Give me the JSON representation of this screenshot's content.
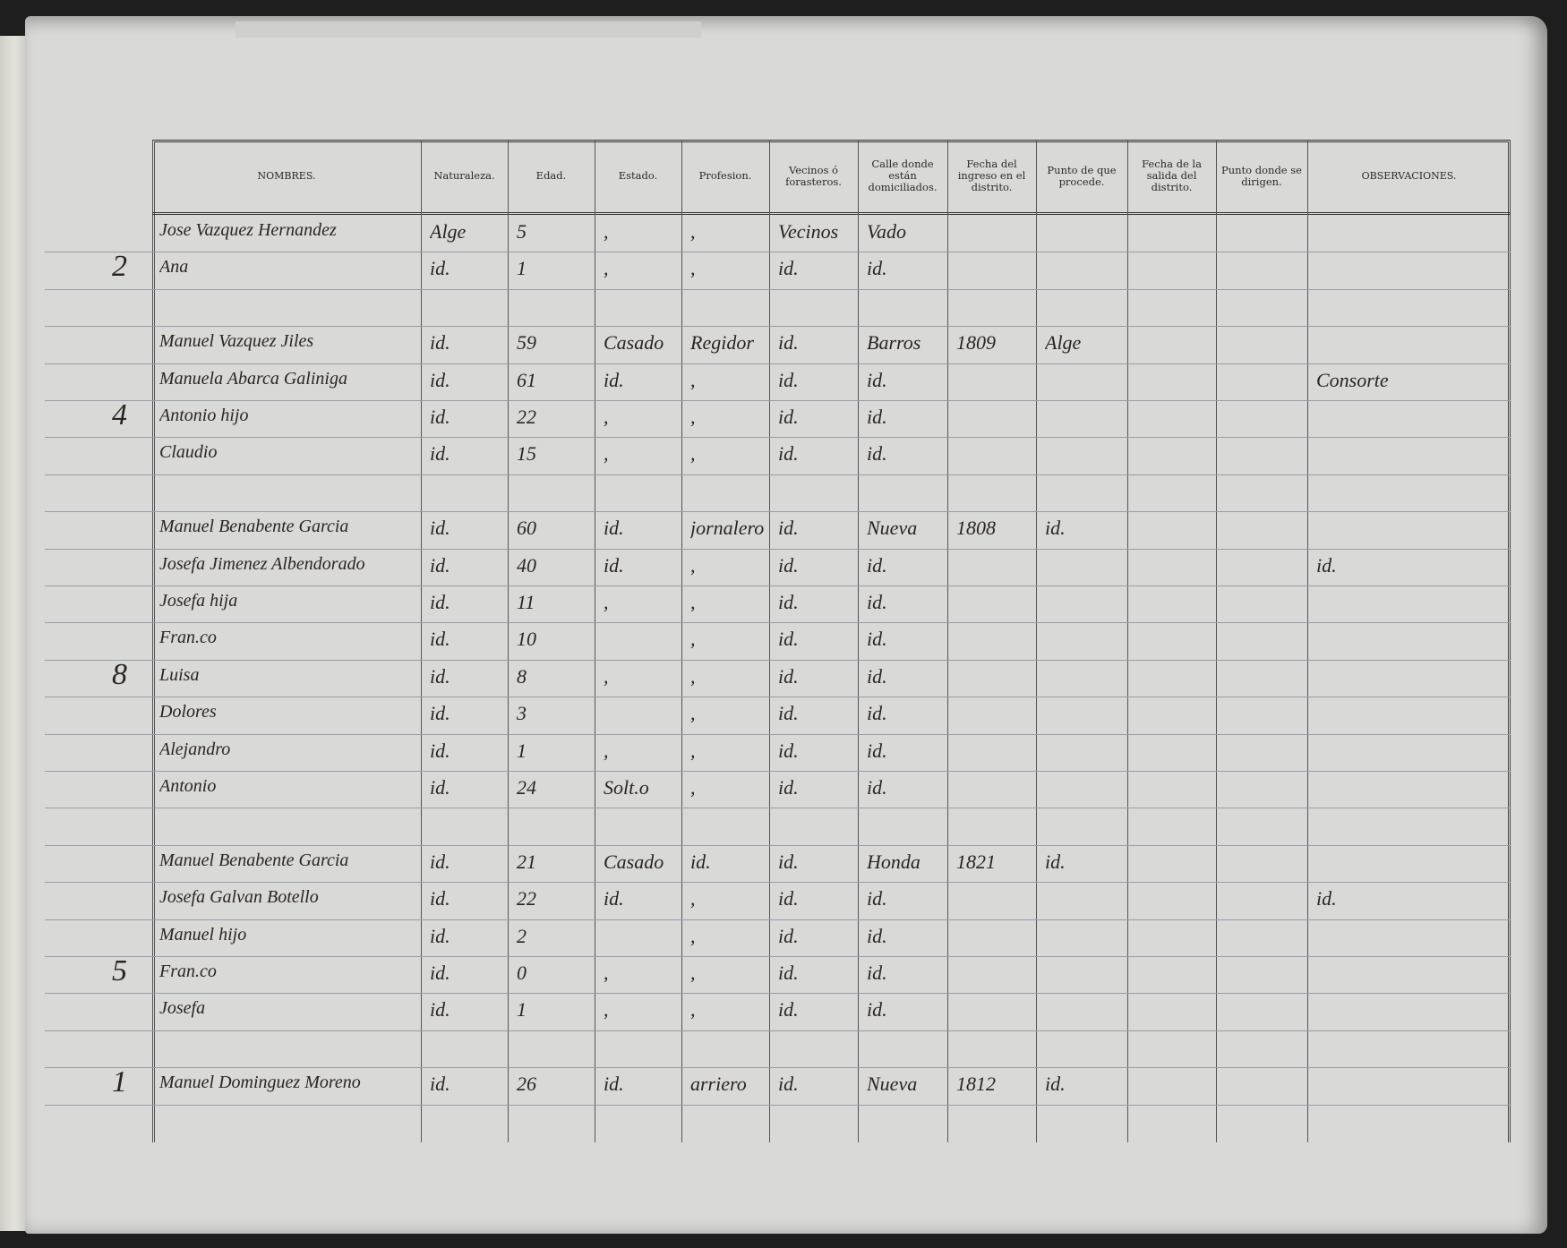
{
  "document": {
    "headers": [
      "NOMBRES.",
      "Naturaleza.",
      "Edad.",
      "Estado.",
      "Profesion.",
      "Vecinos ó forasteros.",
      "Calle donde están domiciliados.",
      "Fecha del ingreso en el distrito.",
      "Punto de que procede.",
      "Fecha de la salida del distrito.",
      "Punto donde se dirigen.",
      "OBSERVACIONES."
    ],
    "ink_color": "#2b2520",
    "paper_color": "#d9d9d7",
    "rows": [
      {
        "family": "",
        "cells": [
          "Jose Vazquez Hernandez",
          "Alge",
          "5",
          ",",
          ",",
          "Vecinos",
          "Vado",
          "",
          "",
          "",
          "",
          ""
        ]
      },
      {
        "family": "2",
        "cells": [
          "Ana",
          "id.",
          "1",
          ",",
          ",",
          "id.",
          "id.",
          "",
          "",
          "",
          "",
          ""
        ]
      },
      {
        "family": "",
        "cells": [
          "",
          "",
          "",
          "",
          "",
          "",
          "",
          "",
          "",
          "",
          "",
          ""
        ]
      },
      {
        "family": "",
        "cells": [
          "Manuel Vazquez Jiles",
          "id.",
          "59",
          "Casado",
          "Regidor",
          "id.",
          "Barros",
          "1809",
          "Alge",
          "",
          "",
          ""
        ]
      },
      {
        "family": "",
        "cells": [
          "Manuela Abarca Galiniga",
          "id.",
          "61",
          "id.",
          ",",
          "id.",
          "id.",
          "",
          "",
          "",
          "",
          "Consorte"
        ]
      },
      {
        "family": "4",
        "cells": [
          "Antonio hijo",
          "id.",
          "22",
          ",",
          ",",
          "id.",
          "id.",
          "",
          "",
          "",
          "",
          ""
        ]
      },
      {
        "family": "",
        "cells": [
          "Claudio",
          "id.",
          "15",
          ",",
          ",",
          "id.",
          "id.",
          "",
          "",
          "",
          "",
          ""
        ]
      },
      {
        "family": "",
        "cells": [
          "",
          "",
          "",
          "",
          "",
          "",
          "",
          "",
          "",
          "",
          "",
          ""
        ]
      },
      {
        "family": "",
        "cells": [
          "Manuel Benabente Garcia",
          "id.",
          "60",
          "id.",
          "jornalero",
          "id.",
          "Nueva",
          "1808",
          "id.",
          "",
          "",
          ""
        ]
      },
      {
        "family": "",
        "cells": [
          "Josefa Jimenez Albendorado",
          "id.",
          "40",
          "id.",
          ",",
          "id.",
          "id.",
          "",
          "",
          "",
          "",
          "id."
        ]
      },
      {
        "family": "",
        "cells": [
          "Josefa hija",
          "id.",
          "11",
          ",",
          ",",
          "id.",
          "id.",
          "",
          "",
          "",
          "",
          ""
        ]
      },
      {
        "family": "",
        "cells": [
          "Fran.co",
          "id.",
          "10",
          "",
          ",",
          "id.",
          "id.",
          "",
          "",
          "",
          "",
          ""
        ]
      },
      {
        "family": "8",
        "cells": [
          "Luisa",
          "id.",
          "8",
          ",",
          ",",
          "id.",
          "id.",
          "",
          "",
          "",
          "",
          ""
        ]
      },
      {
        "family": "",
        "cells": [
          "Dolores",
          "id.",
          "3",
          "",
          ",",
          "id.",
          "id.",
          "",
          "",
          "",
          "",
          ""
        ]
      },
      {
        "family": "",
        "cells": [
          "Alejandro",
          "id.",
          "1",
          ",",
          ",",
          "id.",
          "id.",
          "",
          "",
          "",
          "",
          ""
        ]
      },
      {
        "family": "",
        "cells": [
          "Antonio",
          "id.",
          "24",
          "Solt.o",
          ",",
          "id.",
          "id.",
          "",
          "",
          "",
          "",
          ""
        ]
      },
      {
        "family": "",
        "cells": [
          "",
          "",
          "",
          "",
          "",
          "",
          "",
          "",
          "",
          "",
          "",
          ""
        ]
      },
      {
        "family": "",
        "cells": [
          "Manuel Benabente Garcia",
          "id.",
          "21",
          "Casado",
          "id.",
          "id.",
          "Honda",
          "1821",
          "id.",
          "",
          "",
          ""
        ]
      },
      {
        "family": "",
        "cells": [
          "Josefa Galvan Botello",
          "id.",
          "22",
          "id.",
          ",",
          "id.",
          "id.",
          "",
          "",
          "",
          "",
          "id."
        ]
      },
      {
        "family": "",
        "cells": [
          "Manuel hijo",
          "id.",
          "2",
          "",
          ",",
          "id.",
          "id.",
          "",
          "",
          "",
          "",
          ""
        ]
      },
      {
        "family": "5",
        "cells": [
          "Fran.co",
          "id.",
          "0",
          ",",
          ",",
          "id.",
          "id.",
          "",
          "",
          "",
          "",
          ""
        ]
      },
      {
        "family": "",
        "cells": [
          "Josefa",
          "id.",
          "1",
          ",",
          ",",
          "id.",
          "id.",
          "",
          "",
          "",
          "",
          ""
        ]
      },
      {
        "family": "",
        "cells": [
          "",
          "",
          "",
          "",
          "",
          "",
          "",
          "",
          "",
          "",
          "",
          ""
        ]
      },
      {
        "family": "1",
        "cells": [
          "Manuel Dominguez Moreno",
          "id.",
          "26",
          "id.",
          "arriero",
          "id.",
          "Nueva",
          "1812",
          "id.",
          "",
          "",
          ""
        ]
      }
    ]
  }
}
